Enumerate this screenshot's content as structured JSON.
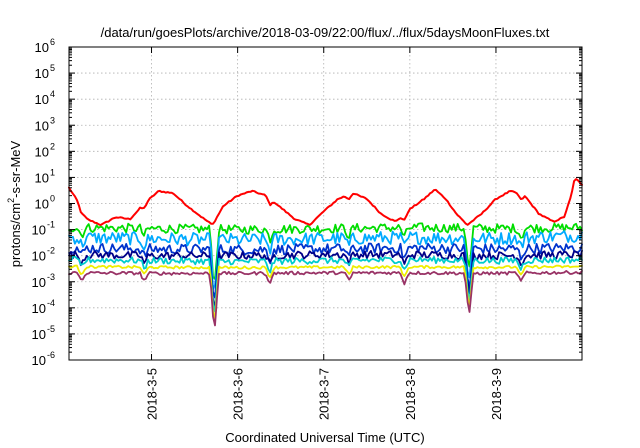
{
  "chart_data": {
    "type": "line",
    "title": "/data/run/goesPlots/archive/2018-03-09/22:00/flux/../flux/5daysMoonFluxes.txt",
    "xlabel": "Coordinated Universal Time (UTC)",
    "ylabel_parts": {
      "pre": "protons/cm",
      "sup": "2",
      "post": "-s-sr-MeV"
    },
    "yscale": "log",
    "ylim": [
      1e-06,
      1000000.0
    ],
    "xlim": [
      "2018-03-04 01:00",
      "2018-03-09 23:59"
    ],
    "grid": true,
    "legend": "none",
    "y_ticks": [
      {
        "value": 1e-06,
        "base": "10",
        "exp": "-6"
      },
      {
        "value": 1e-05,
        "base": "10",
        "exp": "-5"
      },
      {
        "value": 0.0001,
        "base": "10",
        "exp": "-4"
      },
      {
        "value": 0.001,
        "base": "10",
        "exp": "-3"
      },
      {
        "value": 0.01,
        "base": "10",
        "exp": "-2"
      },
      {
        "value": 0.1,
        "base": "10",
        "exp": "-1"
      },
      {
        "value": 1,
        "base": "10",
        "exp": "0"
      },
      {
        "value": 10,
        "base": "10",
        "exp": "1"
      },
      {
        "value": 100,
        "base": "10",
        "exp": "2"
      },
      {
        "value": 1000,
        "base": "10",
        "exp": "3"
      },
      {
        "value": 10000,
        "base": "10",
        "exp": "4"
      },
      {
        "value": 100000,
        "base": "10",
        "exp": "5"
      },
      {
        "value": 1000000,
        "base": "10",
        "exp": "6"
      }
    ],
    "x_ticks": [
      {
        "value": "2018-03-05 00:00",
        "label": "2018-3-5"
      },
      {
        "value": "2018-03-06 00:00",
        "label": "2018-3-6"
      },
      {
        "value": "2018-03-07 00:00",
        "label": "2018-3-7"
      },
      {
        "value": "2018-03-08 00:00",
        "label": "2018-3-8"
      },
      {
        "value": "2018-03-09 00:00",
        "label": "2018-3-9"
      }
    ],
    "series": [
      {
        "color": "#ff0000",
        "x": [
          "2018-03-04 01:00",
          "2018-03-04 03:00",
          "2018-03-04 06:00",
          "2018-03-04 10:00",
          "2018-03-04 14:00",
          "2018-03-04 18:00",
          "2018-03-04 22:00",
          "2018-03-05 02:00",
          "2018-03-05 06:00",
          "2018-03-05 10:00",
          "2018-03-05 14:00",
          "2018-03-05 17:00",
          "2018-03-05 20:00",
          "2018-03-06 00:00",
          "2018-03-06 04:00",
          "2018-03-06 08:00",
          "2018-03-06 12:00",
          "2018-03-06 16:00",
          "2018-03-06 20:00",
          "2018-03-07 00:00",
          "2018-03-07 04:00",
          "2018-03-07 08:00",
          "2018-03-07 12:00",
          "2018-03-07 16:00",
          "2018-03-07 20:00",
          "2018-03-08 00:00",
          "2018-03-08 04:00",
          "2018-03-08 07:00",
          "2018-03-08 10:00",
          "2018-03-08 13:00",
          "2018-03-08 16:00",
          "2018-03-08 20:00",
          "2018-03-09 00:00",
          "2018-03-09 04:00",
          "2018-03-09 08:00",
          "2018-03-09 12:00",
          "2018-03-09 16:00",
          "2018-03-09 19:00",
          "2018-03-09 21:00",
          "2018-03-09 22:00",
          "2018-03-09 23:59"
        ],
        "y": [
          4,
          1.5,
          0.25,
          0.15,
          0.3,
          0.25,
          1,
          3,
          2.5,
          0.8,
          0.3,
          0.15,
          0.8,
          2,
          3,
          2,
          0.7,
          0.25,
          0.15,
          0.5,
          1.5,
          2.5,
          1.5,
          0.4,
          0.2,
          0.6,
          1.5,
          3.5,
          1.5,
          0.4,
          0.15,
          0.4,
          1.5,
          3,
          2,
          0.4,
          0.2,
          0.3,
          2,
          10,
          5
        ]
      },
      {
        "color": "#00dd00",
        "x": [
          "2018-03-04 01:00",
          "2018-03-05 00:00",
          "2018-03-06 00:00",
          "2018-03-07 00:00",
          "2018-03-08 00:00",
          "2018-03-09 00:00",
          "2018-03-09 23:59"
        ],
        "y": [
          0.12,
          0.11,
          0.1,
          0.11,
          0.12,
          0.11,
          0.12
        ],
        "noise": 0.35
      },
      {
        "color": "#00aaff",
        "x": [
          "2018-03-04 01:00",
          "2018-03-05 00:00",
          "2018-03-06 00:00",
          "2018-03-07 00:00",
          "2018-03-08 00:00",
          "2018-03-09 00:00",
          "2018-03-09 23:59"
        ],
        "y": [
          0.05,
          0.045,
          0.04,
          0.045,
          0.05,
          0.045,
          0.06
        ],
        "noise": 0.5
      },
      {
        "color": "#0033cc",
        "x": [
          "2018-03-04 01:00",
          "2018-03-05 00:00",
          "2018-03-06 00:00",
          "2018-03-07 00:00",
          "2018-03-08 00:00",
          "2018-03-09 00:00",
          "2018-03-09 23:59"
        ],
        "y": [
          0.02,
          0.018,
          0.017,
          0.018,
          0.02,
          0.018,
          0.02
        ],
        "noise": 0.4
      },
      {
        "color": "#000088",
        "x": [
          "2018-03-04 01:00",
          "2018-03-05 00:00",
          "2018-03-06 00:00",
          "2018-03-07 00:00",
          "2018-03-08 00:00",
          "2018-03-09 00:00",
          "2018-03-09 23:59"
        ],
        "y": [
          0.011,
          0.01,
          0.01,
          0.011,
          0.011,
          0.01,
          0.011
        ],
        "noise": 0.3
      },
      {
        "color": "#00cccc",
        "x": [
          "2018-03-04 01:00",
          "2018-03-05 00:00",
          "2018-03-06 00:00",
          "2018-03-07 00:00",
          "2018-03-08 00:00",
          "2018-03-09 00:00",
          "2018-03-09 23:59"
        ],
        "y": [
          0.007,
          0.0065,
          0.006,
          0.0065,
          0.007,
          0.0065,
          0.007
        ],
        "noise": 0.25
      },
      {
        "color": "#eeee00",
        "x": [
          "2018-03-04 01:00",
          "2018-03-05 00:00",
          "2018-03-06 00:00",
          "2018-03-07 00:00",
          "2018-03-08 00:00",
          "2018-03-09 00:00",
          "2018-03-09 23:59"
        ],
        "y": [
          0.0038,
          0.0036,
          0.0035,
          0.0036,
          0.0037,
          0.0036,
          0.0038
        ],
        "noise": 0.1
      },
      {
        "color": "#993366",
        "x": [
          "2018-03-04 01:00",
          "2018-03-05 00:00",
          "2018-03-06 00:00",
          "2018-03-07 00:00",
          "2018-03-08 00:00",
          "2018-03-09 00:00",
          "2018-03-09 23:59"
        ],
        "y": [
          0.0022,
          0.0021,
          0.0021,
          0.0022,
          0.0022,
          0.0021,
          0.0023
        ],
        "noise": 0.12
      }
    ],
    "dips": [
      {
        "x": "2018-03-04 04:30",
        "factor": 0.5
      },
      {
        "x": "2018-03-04 22:00",
        "factor": 0.5
      },
      {
        "x": "2018-03-05 17:30",
        "factor": 0.0045
      },
      {
        "x": "2018-03-06 09:00",
        "factor": 0.4
      },
      {
        "x": "2018-03-07 07:00",
        "factor": 0.5
      },
      {
        "x": "2018-03-07 22:30",
        "factor": 0.4
      },
      {
        "x": "2018-03-08 16:30",
        "factor": 0.018
      },
      {
        "x": "2018-03-09 07:00",
        "factor": 0.45
      }
    ]
  }
}
